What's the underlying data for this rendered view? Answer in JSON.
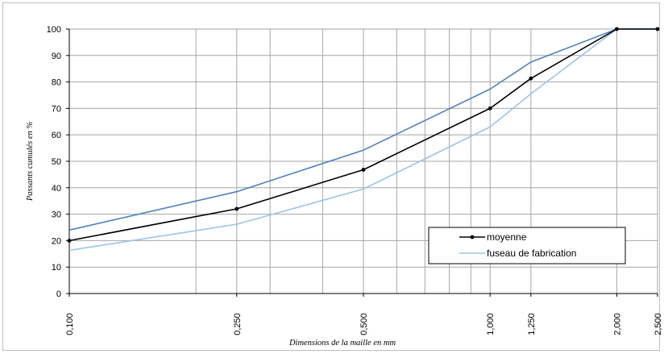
{
  "chart_data": {
    "type": "line",
    "xscale": "log",
    "xlim": [
      0.1,
      2.5
    ],
    "ylim": [
      0,
      100
    ],
    "grid": true,
    "ylabel": "Passants cumulés en %",
    "xlabel": "Dimensions de la maille en mm",
    "yticks": [
      0,
      10,
      20,
      30,
      40,
      50,
      60,
      70,
      80,
      90,
      100
    ],
    "xticks": [
      {
        "value": 0.1,
        "label": "0,100"
      },
      {
        "value": 0.25,
        "label": "0,250"
      },
      {
        "value": 0.5,
        "label": "0,500"
      },
      {
        "value": 1.0,
        "label": "1,000"
      },
      {
        "value": 1.25,
        "label": "1,250"
      },
      {
        "value": 2.0,
        "label": "2,000"
      },
      {
        "value": 2.5,
        "label": "2,500"
      }
    ],
    "minor_gridlines_x": [
      0.2,
      0.3,
      0.4,
      0.6,
      0.7,
      0.8,
      0.9
    ],
    "legend_position": "bottom-right",
    "series": [
      {
        "name": "moyenne",
        "color": "#000000",
        "markers": true,
        "x": [
          0.1,
          0.25,
          0.5,
          1.0,
          1.25,
          2.0,
          2.5
        ],
        "y": [
          20,
          32,
          46.8,
          70,
          81.3,
          100,
          100
        ]
      },
      {
        "name": "fuseau de fabrication",
        "color": "#9dc3e6",
        "markers": false,
        "x": [
          0.1,
          0.25,
          0.5,
          1.0,
          1.25,
          2.0,
          2.5
        ],
        "y": [
          16.3,
          26.2,
          39.5,
          63,
          75.5,
          100,
          100
        ]
      },
      {
        "name": "",
        "color": "#4f81bd",
        "markers": false,
        "x": [
          0.1,
          0.25,
          0.5,
          1.0,
          1.25,
          2.0,
          2.5
        ],
        "y": [
          24,
          38.5,
          54.2,
          77.3,
          87.5,
          100,
          100
        ]
      }
    ]
  }
}
